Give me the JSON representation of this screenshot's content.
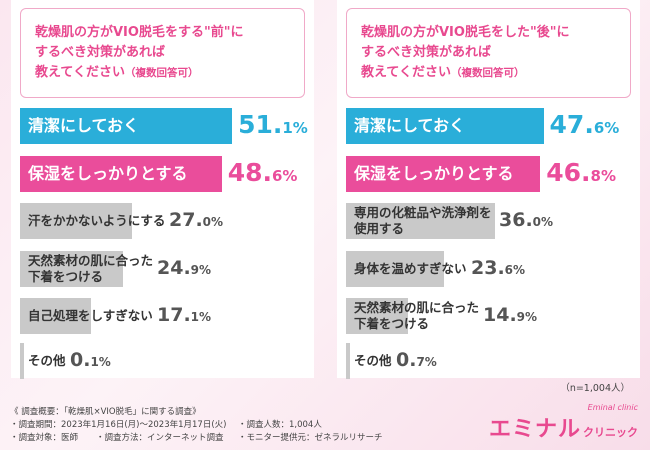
{
  "chart_data": [
    {
      "type": "bar",
      "title": "乾燥肌の方がVIO脱毛をする\"前\"にするべき対策があれば教えてください（複数回答可）",
      "title_lines": [
        "乾燥肌の方がVIO脱毛をする\"前\"に",
        "するべき対策があれば",
        "教えてください"
      ],
      "note": "（複数回答可）",
      "categories": [
        "清潔にしておく",
        "保湿をしっかりとする",
        "汗をかかないようにする",
        "天然素材の肌に合った\n下着をつける",
        "自己処理をしすぎない",
        "その他"
      ],
      "values": [
        51.1,
        48.6,
        27.0,
        24.9,
        17.1,
        0.1
      ],
      "value_parts": [
        [
          "51.",
          "1%"
        ],
        [
          "48.",
          "6%"
        ],
        [
          "27.",
          "0%"
        ],
        [
          "24.",
          "9%"
        ],
        [
          "17.",
          "1%"
        ],
        [
          "0.",
          "1%"
        ]
      ],
      "highlight": [
        "#2aaed9",
        "#ea4d9b"
      ],
      "bar_color": "#c9c9c9",
      "xlim": [
        0,
        100
      ]
    },
    {
      "type": "bar",
      "title": "乾燥肌の方がVIO脱毛をした\"後\"にするべき対策があれば教えてください（複数回答可）",
      "title_lines": [
        "乾燥肌の方がVIO脱毛をした\"後\"に",
        "するべき対策があれば",
        "教えてください"
      ],
      "note": "（複数回答可）",
      "categories": [
        "清潔にしておく",
        "保湿をしっかりとする",
        "専用の化粧品や洗浄剤を\n使用する",
        "身体を温めすぎない",
        "天然素材の肌に合った\n下着をつける",
        "その他"
      ],
      "values": [
        47.6,
        46.8,
        36.0,
        23.6,
        14.9,
        0.7
      ],
      "value_parts": [
        [
          "47.",
          "6%"
        ],
        [
          "46.",
          "8%"
        ],
        [
          "36.",
          "0%"
        ],
        [
          "23.",
          "6%"
        ],
        [
          "14.",
          "9%"
        ],
        [
          "0.",
          "7%"
        ]
      ],
      "highlight": [
        "#2aaed9",
        "#ea4d9b"
      ],
      "bar_color": "#c9c9c9",
      "xlim": [
        0,
        100
      ]
    }
  ],
  "sample_size": "（n=1,004人）",
  "footer": {
    "title": "《 調査概要：「乾燥肌×VIO脱毛」に関する調査》",
    "period": "・調査期間：2023年1月16日(月)～2023年1月17日(火)",
    "count": "・調査人数：1,004人",
    "target": "・調査対象：医師",
    "method": "・調査方法：インターネット調査",
    "provider": "・モニター提供元：ゼネラルリサーチ"
  },
  "logo": {
    "main": "エミナル",
    "sub": "クリニック",
    "en": "Eminal clinic"
  }
}
